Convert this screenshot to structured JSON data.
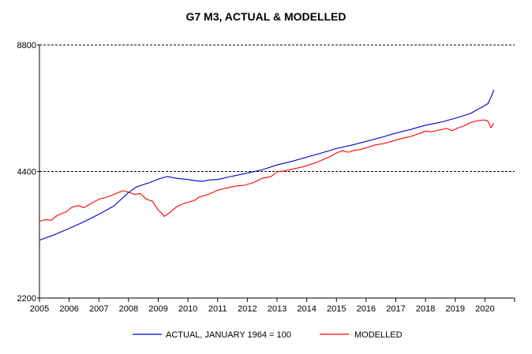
{
  "chart_data": {
    "type": "line",
    "title": "G7 M3, ACTUAL & MODELLED",
    "xlabel": "",
    "ylabel": "",
    "yscale": "log",
    "ylim": [
      2200,
      8800
    ],
    "xlim": [
      2005,
      2021
    ],
    "y_ticks": [
      "2200",
      "4400",
      "8800"
    ],
    "x_ticks": [
      "2005",
      "2006",
      "2007",
      "2008",
      "2009",
      "2010",
      "2011",
      "2012",
      "2013",
      "2014",
      "2015",
      "2016",
      "2017",
      "2018",
      "2019",
      "2020"
    ],
    "grid": "dashed horizontal at 4400 and 8800",
    "legend_position": "bottom",
    "colors": {
      "actual": "#0000cc",
      "modelled": "#ff0000"
    },
    "series": [
      {
        "name": "ACTUAL, JANUARY 1964 = 100",
        "color": "#0000cc",
        "points": [
          [
            2005.0,
            3020
          ],
          [
            2005.5,
            3110
          ],
          [
            2006.0,
            3220
          ],
          [
            2006.5,
            3340
          ],
          [
            2007.0,
            3480
          ],
          [
            2007.5,
            3640
          ],
          [
            2008.0,
            3920
          ],
          [
            2008.25,
            4040
          ],
          [
            2008.75,
            4150
          ],
          [
            2009.0,
            4220
          ],
          [
            2009.3,
            4280
          ],
          [
            2009.6,
            4240
          ],
          [
            2010.0,
            4210
          ],
          [
            2010.3,
            4180
          ],
          [
            2010.5,
            4170
          ],
          [
            2010.7,
            4200
          ],
          [
            2011.0,
            4210
          ],
          [
            2011.5,
            4290
          ],
          [
            2012.0,
            4360
          ],
          [
            2012.5,
            4440
          ],
          [
            2013.0,
            4560
          ],
          [
            2013.5,
            4650
          ],
          [
            2014.0,
            4760
          ],
          [
            2014.5,
            4870
          ],
          [
            2015.0,
            4990
          ],
          [
            2015.5,
            5080
          ],
          [
            2016.0,
            5190
          ],
          [
            2016.5,
            5300
          ],
          [
            2017.0,
            5430
          ],
          [
            2017.5,
            5540
          ],
          [
            2018.0,
            5670
          ],
          [
            2018.5,
            5760
          ],
          [
            2019.0,
            5890
          ],
          [
            2019.5,
            6040
          ],
          [
            2019.9,
            6260
          ],
          [
            2020.1,
            6380
          ],
          [
            2020.2,
            6600
          ],
          [
            2020.3,
            6880
          ]
        ]
      },
      {
        "name": "MODELLED",
        "color": "#ff0000",
        "points": [
          [
            2005.0,
            3350
          ],
          [
            2005.2,
            3380
          ],
          [
            2005.4,
            3370
          ],
          [
            2005.6,
            3460
          ],
          [
            2005.9,
            3530
          ],
          [
            2006.1,
            3620
          ],
          [
            2006.3,
            3650
          ],
          [
            2006.5,
            3610
          ],
          [
            2006.7,
            3680
          ],
          [
            2007.0,
            3780
          ],
          [
            2007.3,
            3830
          ],
          [
            2007.5,
            3880
          ],
          [
            2007.8,
            3960
          ],
          [
            2008.0,
            3930
          ],
          [
            2008.2,
            3880
          ],
          [
            2008.4,
            3900
          ],
          [
            2008.6,
            3780
          ],
          [
            2008.8,
            3740
          ],
          [
            2009.0,
            3560
          ],
          [
            2009.1,
            3510
          ],
          [
            2009.2,
            3440
          ],
          [
            2009.4,
            3520
          ],
          [
            2009.6,
            3620
          ],
          [
            2009.8,
            3680
          ],
          [
            2010.0,
            3720
          ],
          [
            2010.2,
            3750
          ],
          [
            2010.4,
            3830
          ],
          [
            2010.6,
            3860
          ],
          [
            2010.8,
            3910
          ],
          [
            2011.0,
            3970
          ],
          [
            2011.3,
            4020
          ],
          [
            2011.6,
            4060
          ],
          [
            2011.9,
            4080
          ],
          [
            2012.2,
            4140
          ],
          [
            2012.5,
            4240
          ],
          [
            2012.8,
            4280
          ],
          [
            2013.0,
            4390
          ],
          [
            2013.3,
            4420
          ],
          [
            2013.6,
            4470
          ],
          [
            2013.9,
            4520
          ],
          [
            2014.2,
            4590
          ],
          [
            2014.5,
            4680
          ],
          [
            2014.8,
            4780
          ],
          [
            2015.0,
            4870
          ],
          [
            2015.2,
            4930
          ],
          [
            2015.4,
            4890
          ],
          [
            2015.6,
            4940
          ],
          [
            2015.8,
            4960
          ],
          [
            2016.0,
            5010
          ],
          [
            2016.3,
            5090
          ],
          [
            2016.6,
            5130
          ],
          [
            2016.9,
            5200
          ],
          [
            2017.2,
            5270
          ],
          [
            2017.5,
            5330
          ],
          [
            2017.8,
            5420
          ],
          [
            2018.0,
            5490
          ],
          [
            2018.2,
            5470
          ],
          [
            2018.4,
            5510
          ],
          [
            2018.7,
            5570
          ],
          [
            2018.9,
            5500
          ],
          [
            2019.1,
            5590
          ],
          [
            2019.3,
            5650
          ],
          [
            2019.5,
            5750
          ],
          [
            2019.7,
            5800
          ],
          [
            2019.9,
            5830
          ],
          [
            2020.0,
            5830
          ],
          [
            2020.1,
            5800
          ],
          [
            2020.2,
            5590
          ],
          [
            2020.3,
            5730
          ]
        ]
      }
    ]
  }
}
